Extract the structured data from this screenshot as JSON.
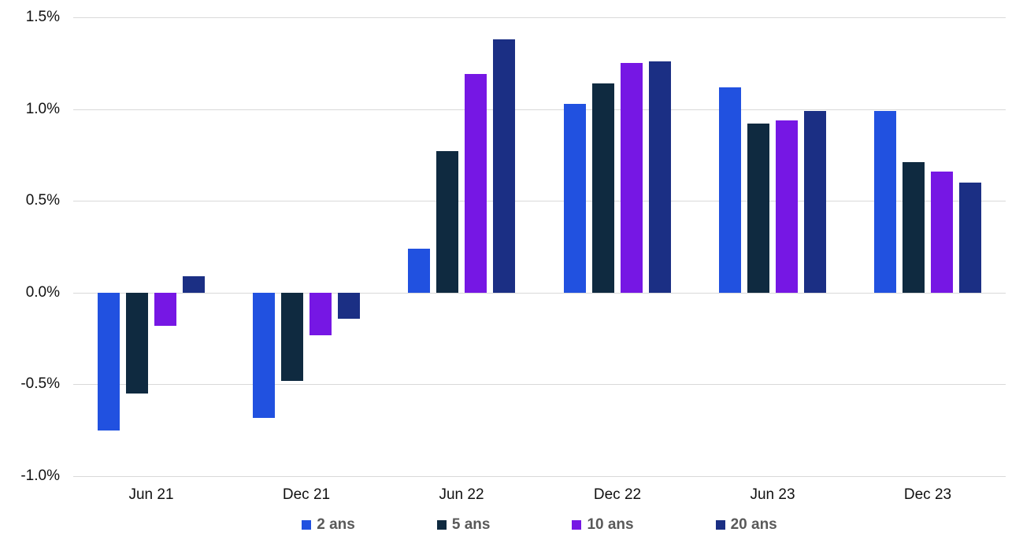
{
  "chart_data": {
    "type": "bar",
    "title": "",
    "xlabel": "",
    "ylabel": "",
    "categories": [
      "Jun 21",
      "Dec 21",
      "Jun 22",
      "Dec 22",
      "Jun 23",
      "Dec 23"
    ],
    "series": [
      {
        "name": "2 ans",
        "color": "#2151E0",
        "values": [
          -0.75,
          -0.68,
          0.24,
          1.03,
          1.12,
          0.99
        ]
      },
      {
        "name": "5 ans",
        "color": "#0F2A40",
        "values": [
          -0.55,
          -0.48,
          0.77,
          1.14,
          0.92,
          0.71
        ]
      },
      {
        "name": "10 ans",
        "color": "#7617E4",
        "values": [
          -0.18,
          -0.23,
          1.19,
          1.25,
          0.94,
          0.66
        ]
      },
      {
        "name": "20 ans",
        "color": "#1B2F84",
        "values": [
          0.09,
          -0.14,
          1.38,
          1.26,
          0.99,
          0.6
        ]
      }
    ],
    "ylim": [
      -1.0,
      1.5
    ],
    "y_ticks": [
      {
        "value": 1.5,
        "label": "1.5%"
      },
      {
        "value": 1.0,
        "label": "1.0%"
      },
      {
        "value": 0.5,
        "label": "0.5%"
      },
      {
        "value": 0.0,
        "label": "0.0%"
      },
      {
        "value": -0.5,
        "label": "-0.5%"
      },
      {
        "value": -1.0,
        "label": "-1.0%"
      }
    ],
    "grid": true,
    "legend_position": "bottom"
  },
  "colors": {
    "background": "#FFFFFF",
    "gridline": "#D9D9D9",
    "axis_text": "#111111",
    "legend_text": "#595959"
  }
}
